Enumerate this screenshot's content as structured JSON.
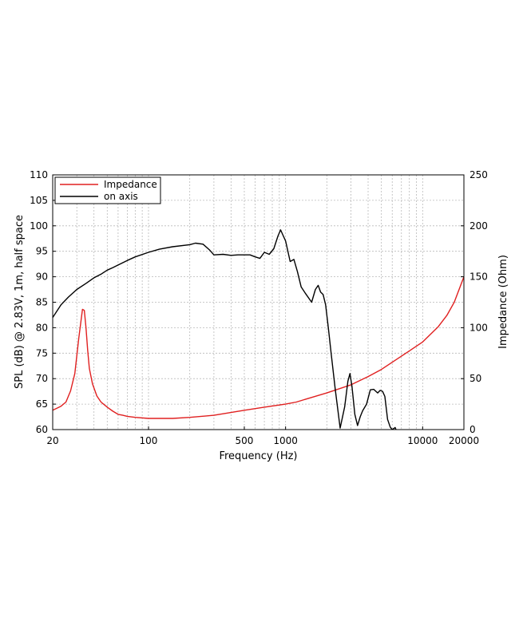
{
  "chart_data": {
    "type": "line",
    "xlabel": "Frequency (Hz)",
    "ylabel_left": "SPL (dB) @ 2.83V, 1m, half space",
    "ylabel_right": "Impedance (Ohm)",
    "x_scale": "log",
    "xlim": [
      20,
      20000
    ],
    "ylim_left": [
      60,
      110
    ],
    "ylim_right": [
      0,
      250
    ],
    "x_ticks": [
      {
        "value": 20,
        "label": "20"
      },
      {
        "value": 100,
        "label": "100"
      },
      {
        "value": 500,
        "label": "500"
      },
      {
        "value": 1000,
        "label": "1000"
      },
      {
        "value": 10000,
        "label": "10000"
      },
      {
        "value": 20000,
        "label": "20000"
      }
    ],
    "y_left_ticks": [
      "60",
      "65",
      "70",
      "75",
      "80",
      "85",
      "90",
      "95",
      "100",
      "105",
      "110"
    ],
    "y_right_ticks": [
      "0",
      "50",
      "100",
      "150",
      "200",
      "250"
    ],
    "grid": true,
    "legend_position": "top-left",
    "series": [
      {
        "name": "Impedance",
        "color": "#e02020",
        "axis": "right",
        "x": [
          20,
          23,
          25,
          27,
          29,
          31,
          33,
          34,
          35,
          36,
          37,
          39,
          42,
          45,
          50,
          55,
          60,
          65,
          70,
          80,
          100,
          120,
          150,
          200,
          300,
          500,
          700,
          1000,
          1200,
          1500,
          2000,
          3000,
          4000,
          5000,
          7000,
          10000,
          13000,
          15000,
          17000,
          20000
        ],
        "values": [
          19,
          23,
          27,
          38,
          55,
          90,
          118,
          117,
          100,
          78,
          60,
          45,
          33,
          27,
          22,
          18,
          15,
          14,
          13,
          12,
          11,
          11,
          11,
          12,
          14,
          19,
          22,
          25,
          27,
          31,
          36,
          44,
          52,
          59,
          72,
          86,
          101,
          112,
          125,
          150
        ]
      },
      {
        "name": "on axis",
        "color": "#000000",
        "axis": "left",
        "x": [
          20,
          23,
          26,
          30,
          35,
          40,
          45,
          50,
          55,
          60,
          70,
          80,
          100,
          120,
          150,
          200,
          220,
          250,
          280,
          300,
          350,
          400,
          450,
          550,
          600,
          650,
          700,
          760,
          820,
          880,
          920,
          1000,
          1080,
          1150,
          1220,
          1300,
          1400,
          1550,
          1650,
          1730,
          1800,
          1880,
          1960,
          2050,
          2150,
          2300,
          2500,
          2700,
          2850,
          2950,
          3050,
          3200,
          3350,
          3500,
          3650,
          3900,
          4150,
          4400,
          4700,
          4900,
          5100,
          5300,
          5550,
          5800,
          6000,
          6300,
          6500,
          6600,
          6750,
          6900,
          7000,
          7100,
          7200
        ],
        "values": [
          82,
          84.5,
          86,
          87.5,
          88.7,
          89.8,
          90.5,
          91.3,
          91.8,
          92.3,
          93.2,
          93.9,
          94.8,
          95.4,
          95.9,
          96.3,
          96.6,
          96.4,
          95.2,
          94.3,
          94.4,
          94.2,
          94.3,
          94.3,
          93.9,
          93.6,
          94.8,
          94.4,
          95.5,
          98.0,
          99.2,
          97.0,
          93.0,
          93.4,
          91.0,
          88.0,
          86.7,
          85.0,
          87.5,
          88.3,
          87.0,
          86.5,
          84.5,
          80.0,
          75.0,
          68.0,
          60.3,
          64.5,
          69.5,
          71.0,
          68.5,
          63.0,
          60.8,
          62.5,
          63.7,
          65.0,
          67.8,
          67.9,
          67.2,
          67.7,
          67.5,
          66.5,
          62.0,
          60.5,
          60.0,
          60.4,
          59.5,
          59.2,
          59.0,
          58.8,
          58.6,
          58.4,
          58.2
        ]
      }
    ]
  }
}
